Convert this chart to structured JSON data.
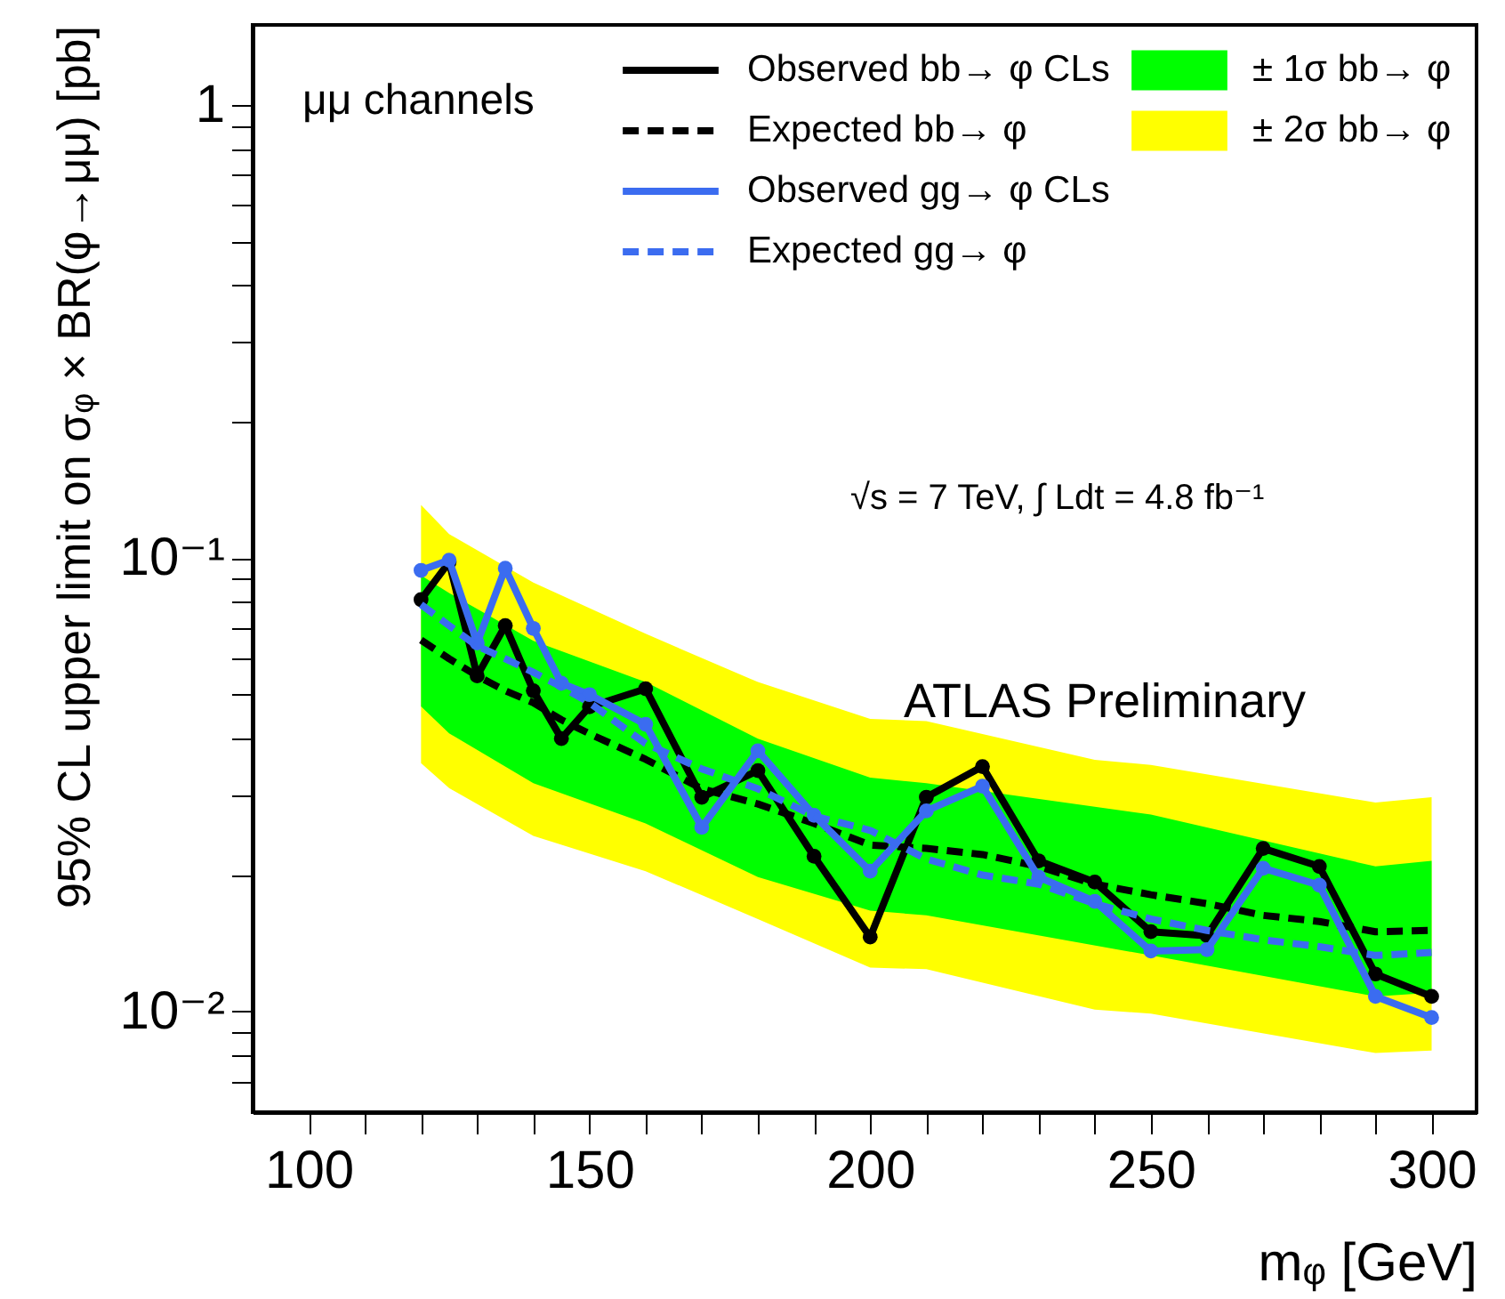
{
  "chart_data": {
    "type": "line",
    "xlabel": "mᵩ [GeV]",
    "ylabel": "95% CL upper limit on σᵩ × BR(φ→μμ) [pb]",
    "annotations": [
      "μμ channels",
      "√s = 7 TeV, ∫ Ldt = 4.8 fb⁻¹",
      "ATLAS Preliminary"
    ],
    "x": [
      120,
      125,
      130,
      135,
      140,
      145,
      150,
      160,
      170,
      180,
      190,
      200,
      210,
      220,
      230,
      240,
      250,
      260,
      270,
      280,
      290,
      300
    ],
    "series": [
      {
        "name": "Observed bb→ φ CLs",
        "color": "#000000",
        "line_style": "solid",
        "marker": "circle",
        "values": [
          0.081,
          0.098,
          0.055,
          0.071,
          0.051,
          0.04,
          0.047,
          0.0515,
          0.0297,
          0.034,
          0.022,
          0.0146,
          0.0297,
          0.0347,
          0.0215,
          0.0193,
          0.015,
          0.0147,
          0.0229,
          0.0209,
          0.0121,
          0.0108
        ]
      },
      {
        "name": "Expected bb→ φ",
        "color": "#000000",
        "line_style": "dashed",
        "marker": "none",
        "values": [
          0.066,
          0.06,
          0.055,
          0.051,
          0.048,
          0.044,
          0.041,
          0.036,
          0.031,
          0.0287,
          0.026,
          0.0233,
          0.0229,
          0.0222,
          0.0209,
          0.0191,
          0.0181,
          0.0173,
          0.0163,
          0.0158,
          0.015,
          0.0151
        ]
      },
      {
        "name": "Observed gg→ φ CLs",
        "color": "#3b6cf0",
        "line_style": "solid",
        "marker": "circle",
        "values": [
          0.094,
          0.099,
          0.065,
          0.095,
          0.07,
          0.053,
          0.05,
          0.043,
          0.0255,
          0.0376,
          0.0271,
          0.0204,
          0.0277,
          0.0314,
          0.0198,
          0.0175,
          0.0136,
          0.0137,
          0.0207,
          0.019,
          0.0108,
          0.0097
        ]
      },
      {
        "name": "Expected gg→ φ",
        "color": "#3b6cf0",
        "line_style": "dashed",
        "marker": "none",
        "values": [
          0.079,
          0.071,
          0.064,
          0.06,
          0.056,
          0.052,
          0.048,
          0.039,
          0.0343,
          0.031,
          0.027,
          0.0251,
          0.0217,
          0.02,
          0.0191,
          0.0173,
          0.016,
          0.0151,
          0.0144,
          0.0139,
          0.0133,
          0.0135
        ]
      },
      {
        "name": "± 1σ bb→ φ",
        "color": "#00ff00",
        "x": [
          120,
          125,
          140,
          160,
          180,
          200,
          210,
          250,
          290,
          300
        ],
        "values": [
          null,
          null,
          null,
          null,
          null,
          null,
          null,
          null,
          null,
          null
        ],
        "lower": [
          0.0471,
          0.0411,
          0.0319,
          0.026,
          0.0198,
          0.0167,
          0.0163,
          0.0133,
          0.0108,
          0.011
        ],
        "upper": [
          0.0916,
          0.0838,
          0.0657,
          0.0533,
          0.04,
          0.0328,
          0.0319,
          0.0272,
          0.0209,
          0.0215
        ]
      },
      {
        "name": "± 2σ bb→ φ",
        "color": "#ffff00",
        "x": [
          120,
          125,
          140,
          160,
          180,
          200,
          210,
          240,
          250,
          290,
          300
        ],
        "values": [
          null,
          null,
          null,
          null,
          null,
          null,
          null,
          null,
          null,
          null,
          null
        ],
        "lower": [
          0.0353,
          0.0311,
          0.0244,
          0.0204,
          0.016,
          0.0125,
          0.0124,
          0.0101,
          0.0099,
          0.0081,
          0.0082
        ],
        "upper": [
          0.131,
          0.113,
          0.0884,
          0.0681,
          0.0533,
          0.0442,
          0.0437,
          0.0359,
          0.035,
          0.0289,
          0.0297
        ]
      }
    ],
    "xlim": [
      90,
      308
    ],
    "xticks": [
      100,
      {
        "value": 110,
        "label": null
      },
      {
        "value": 120,
        "label": null
      },
      {
        "value": 130,
        "label": null
      },
      {
        "value": 140,
        "label": null
      },
      150,
      {
        "value": 160,
        "label": null
      },
      {
        "value": 170,
        "label": null
      },
      {
        "value": 180,
        "label": null
      },
      {
        "value": 190,
        "label": null
      },
      200,
      {
        "value": 210,
        "label": null
      },
      {
        "value": 220,
        "label": null
      },
      {
        "value": 230,
        "label": null
      },
      {
        "value": 240,
        "label": null
      },
      250,
      {
        "value": 260,
        "label": null
      },
      {
        "value": 270,
        "label": null
      },
      {
        "value": 280,
        "label": null
      },
      {
        "value": 290,
        "label": null
      },
      300
    ],
    "ylim": [
      0.006,
      1.5
    ],
    "yticks": [
      {
        "value": 0.007,
        "label": null
      },
      {
        "value": 0.008,
        "label": null
      },
      {
        "value": 0.009,
        "label": null
      },
      {
        "value": 0.01,
        "label": "10⁻²"
      },
      {
        "value": 0.02,
        "label": null
      },
      {
        "value": 0.03,
        "label": null
      },
      {
        "value": 0.04,
        "label": null
      },
      {
        "value": 0.05,
        "label": null
      },
      {
        "value": 0.06,
        "label": null
      },
      {
        "value": 0.07,
        "label": null
      },
      {
        "value": 0.08,
        "label": null
      },
      {
        "value": 0.09,
        "label": null
      },
      {
        "value": 0.1,
        "label": "10⁻¹"
      },
      {
        "value": 0.2,
        "label": null
      },
      {
        "value": 0.3,
        "label": null
      },
      {
        "value": 0.4,
        "label": null
      },
      {
        "value": 0.5,
        "label": null
      },
      {
        "value": 0.6,
        "label": null
      },
      {
        "value": 0.7,
        "label": null
      },
      {
        "value": 0.8,
        "label": null
      },
      {
        "value": 0.9,
        "label": null
      },
      1
    ],
    "log": true,
    "legend": "top right"
  }
}
